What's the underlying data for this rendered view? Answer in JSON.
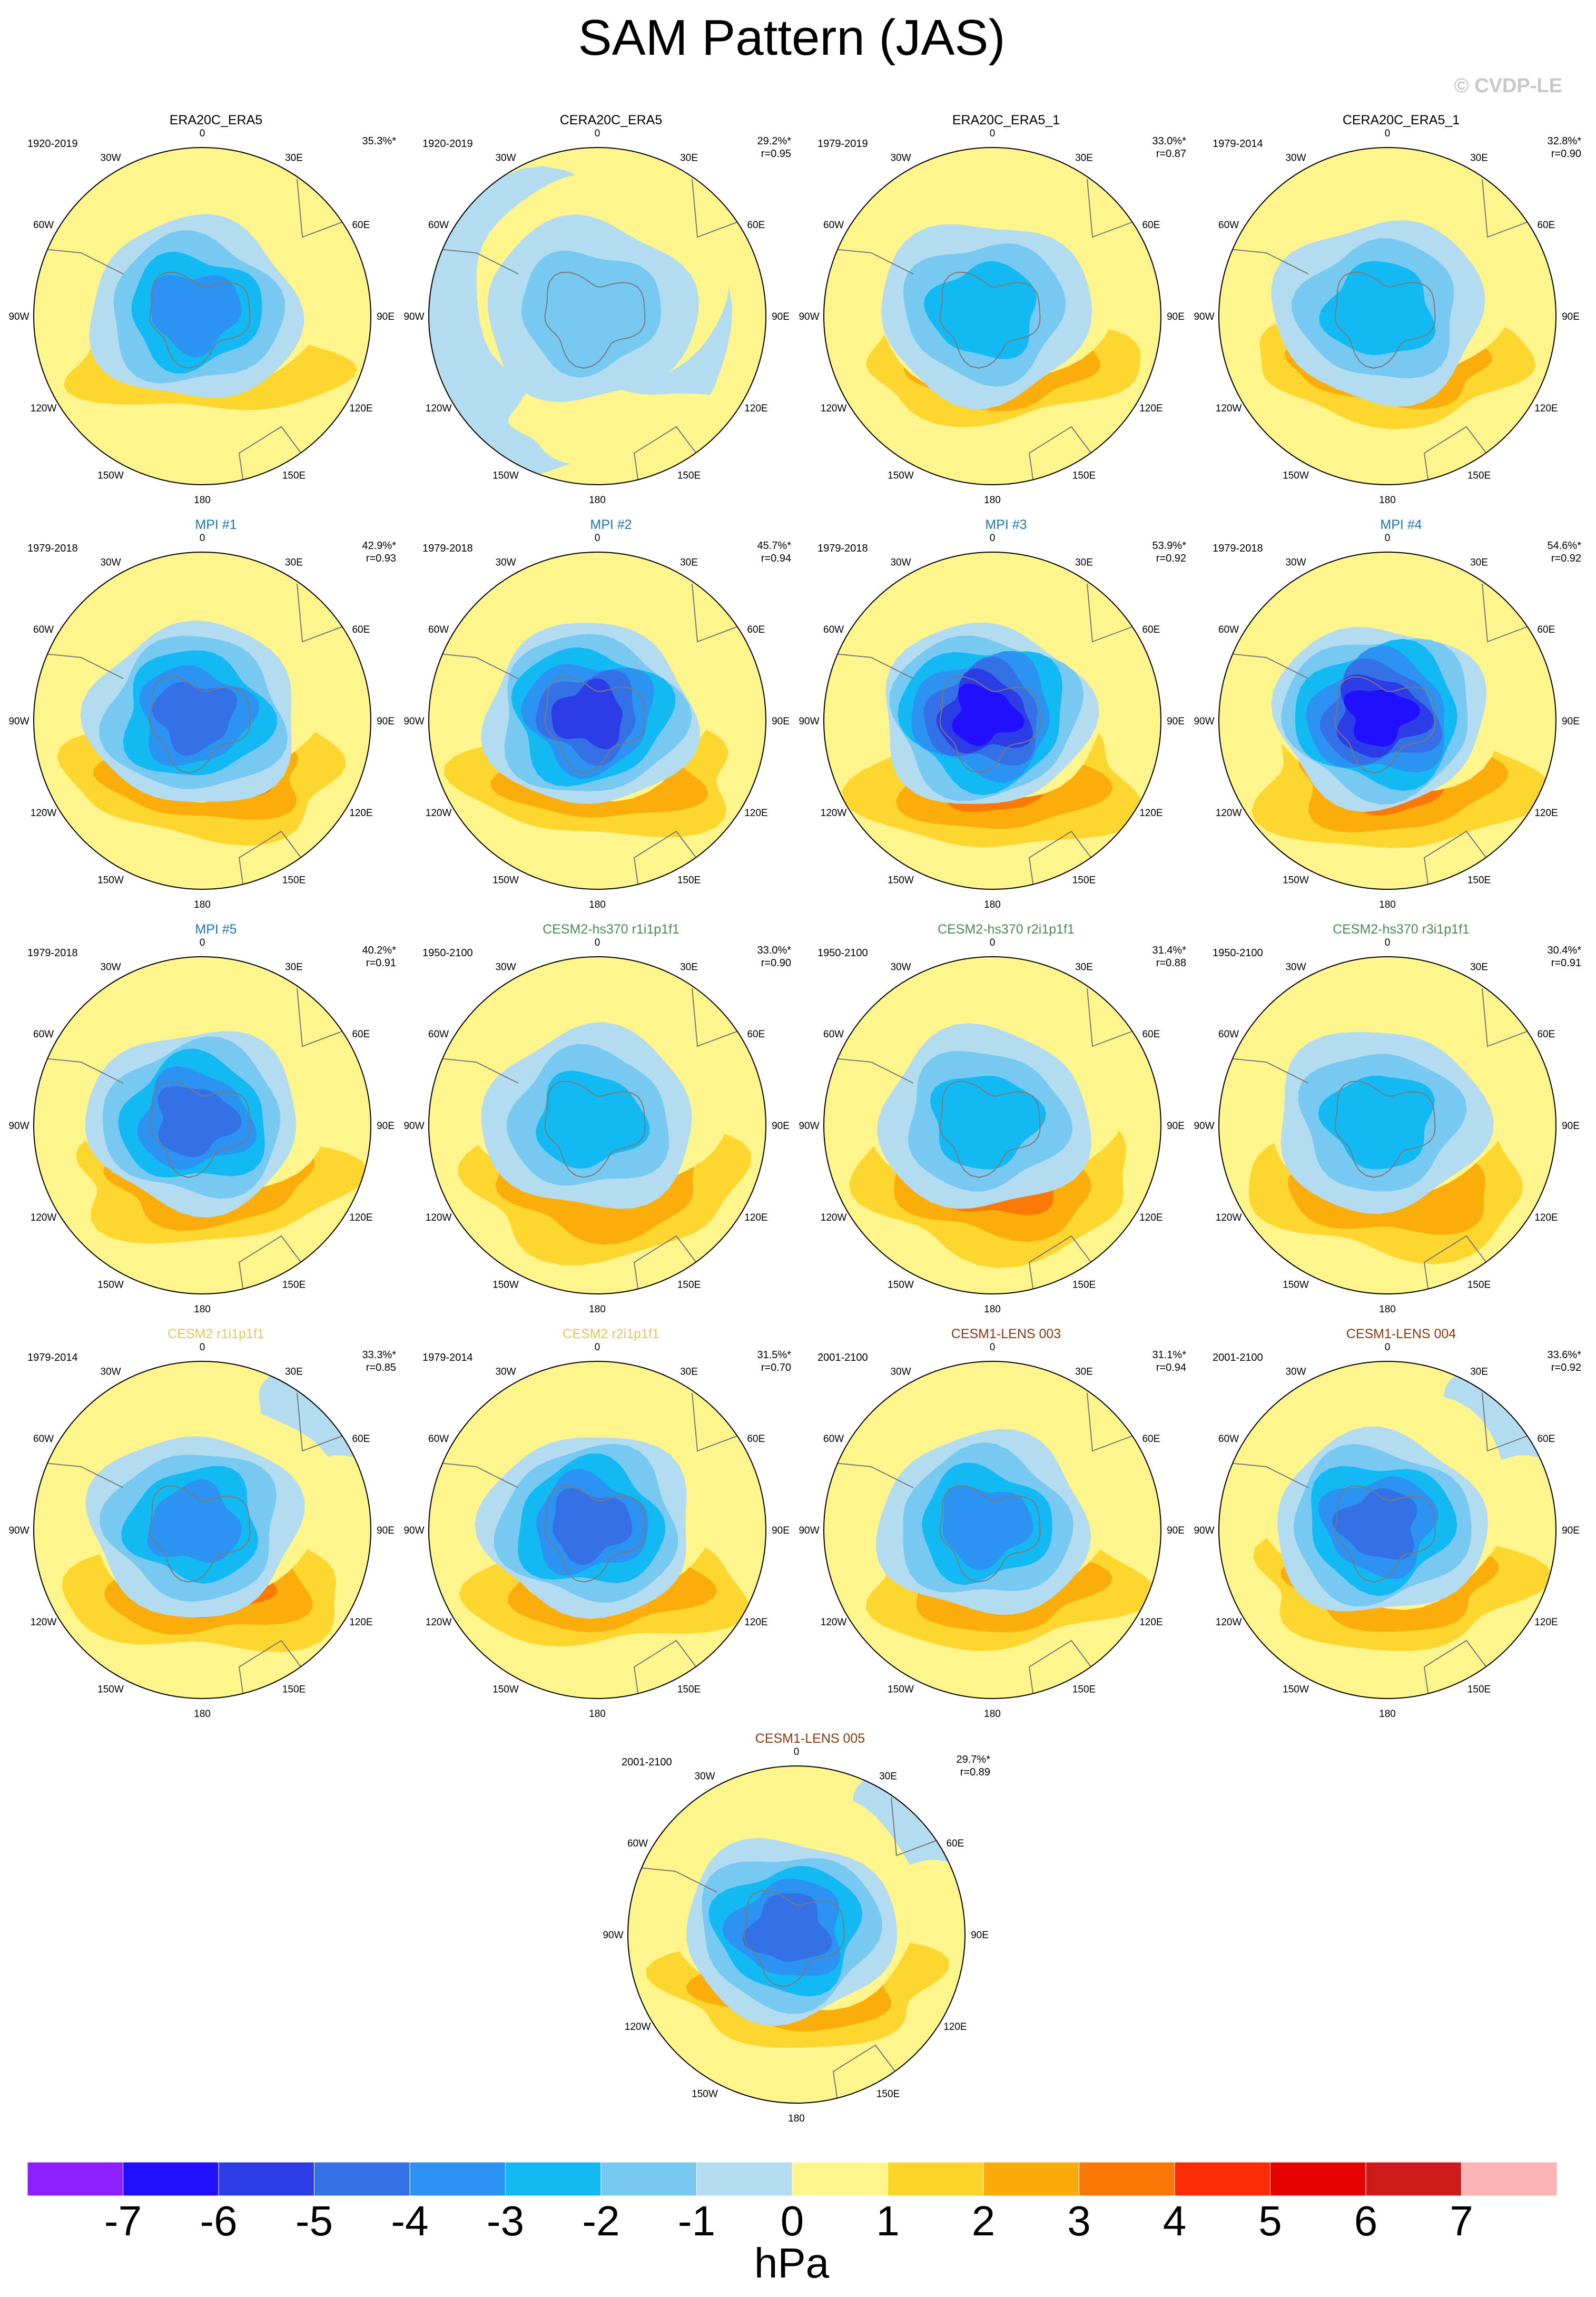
{
  "title": "SAM Pattern (JAS)",
  "copyright": "© CVDP-LE",
  "units": "hPa",
  "longitude_labels": [
    "0",
    "30E",
    "60E",
    "90E",
    "120E",
    "150E",
    "180",
    "150W",
    "120W",
    "90W",
    "60W",
    "30W"
  ],
  "colorbar": {
    "levels": [
      -7,
      -6,
      -5,
      -4,
      -3,
      -2,
      -1,
      0,
      1,
      2,
      3,
      4,
      5,
      6,
      7
    ],
    "tick_labels": [
      "-7",
      "-6",
      "-5",
      "-4",
      "-3",
      "-2",
      "-1",
      "0",
      "1",
      "2",
      "3",
      "4",
      "5",
      "6",
      "7"
    ],
    "colors": [
      "#8c1eff",
      "#2010ff",
      "#2c3de8",
      "#3470e6",
      "#2c93f2",
      "#12b9f2",
      "#77c9f2",
      "#b4dcf0",
      "#fef68c",
      "#fdd42a",
      "#fbab09",
      "#fb7707",
      "#fb2c05",
      "#e50402",
      "#cf1a1a",
      "#fcb4b4"
    ]
  },
  "panels": [
    {
      "title": "ERA20C_ERA5",
      "title_color": "#000000",
      "period": "1920-2019",
      "stats": "35.3%*"
    },
    {
      "title": "CERA20C_ERA5",
      "title_color": "#000000",
      "period": "1920-2019",
      "stats": "29.2%*\nr=0.95"
    },
    {
      "title": "ERA20C_ERA5_1",
      "title_color": "#000000",
      "period": "1979-2019",
      "stats": "33.0%*\nr=0.87"
    },
    {
      "title": "CERA20C_ERA5_1",
      "title_color": "#000000",
      "period": "1979-2014",
      "stats": "32.8%*\nr=0.90"
    },
    {
      "title": "MPI #1",
      "title_color": "#1e77aa",
      "period": "1979-2018",
      "stats": "42.9%*\nr=0.93"
    },
    {
      "title": "MPI #2",
      "title_color": "#1e77aa",
      "period": "1979-2018",
      "stats": "45.7%*\nr=0.94"
    },
    {
      "title": "MPI #3",
      "title_color": "#1e77aa",
      "period": "1979-2018",
      "stats": "53.9%*\nr=0.92"
    },
    {
      "title": "MPI #4",
      "title_color": "#1e77aa",
      "period": "1979-2018",
      "stats": "54.6%*\nr=0.92"
    },
    {
      "title": "MPI #5",
      "title_color": "#1e77aa",
      "period": "1979-2018",
      "stats": "40.2%*\nr=0.91"
    },
    {
      "title": "CESM2-hs370 r1i1p1f1",
      "title_color": "#4e8a5a",
      "period": "1950-2100",
      "stats": "33.0%*\nr=0.90"
    },
    {
      "title": "CESM2-hs370 r2i1p1f1",
      "title_color": "#4e8a5a",
      "period": "1950-2100",
      "stats": "31.4%*\nr=0.88"
    },
    {
      "title": "CESM2-hs370 r3i1p1f1",
      "title_color": "#4e8a5a",
      "period": "1950-2100",
      "stats": "30.4%*\nr=0.91"
    },
    {
      "title": "CESM2 r1i1p1f1",
      "title_color": "#e0c85a",
      "period": "1979-2014",
      "stats": "33.3%*\nr=0.85"
    },
    {
      "title": "CESM2 r2i1p1f1",
      "title_color": "#e0c85a",
      "period": "1979-2014",
      "stats": "31.5%*\nr=0.70"
    },
    {
      "title": "CESM1-LENS 003",
      "title_color": "#8a3a10",
      "period": "2001-2100",
      "stats": "31.1%*\nr=0.94"
    },
    {
      "title": "CESM1-LENS 004",
      "title_color": "#8a3a10",
      "period": "2001-2100",
      "stats": "33.6%*\nr=0.92"
    },
    {
      "title": "CESM1-LENS 005",
      "title_color": "#8a3a10",
      "period": "2001-2100",
      "stats": "29.7%*\nr=0.89"
    }
  ]
}
